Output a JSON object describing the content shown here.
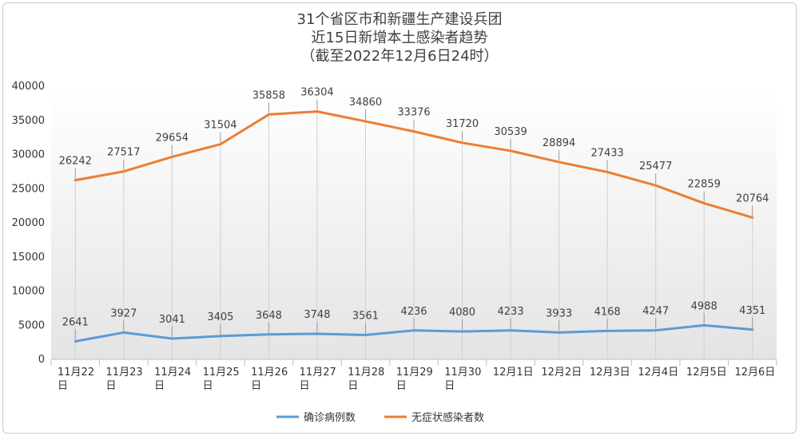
{
  "chart_data": {
    "type": "line",
    "title": [
      "31个省区市和新疆生产建设兵团",
      "近15日新增本土感染者趋势",
      "（截至2022年12月6日24时）"
    ],
    "categories": [
      [
        "11月22",
        "日"
      ],
      [
        "11月23",
        "日"
      ],
      [
        "11月24",
        "日"
      ],
      [
        "11月25",
        "日"
      ],
      [
        "11月26",
        "日"
      ],
      [
        "11月27",
        "日"
      ],
      [
        "11月28",
        "日"
      ],
      [
        "11月29",
        "日"
      ],
      [
        "11月30",
        "日"
      ],
      [
        "12月1日"
      ],
      [
        "12月2日"
      ],
      [
        "12月3日"
      ],
      [
        "12月4日"
      ],
      [
        "12月5日"
      ],
      [
        "12月6日"
      ]
    ],
    "series": [
      {
        "name": "确诊病例数",
        "color": "#5b9bd5",
        "values": [
          2641,
          3927,
          3041,
          3405,
          3648,
          3748,
          3561,
          4236,
          4080,
          4233,
          3933,
          4168,
          4247,
          4988,
          4351
        ],
        "labels": [
          "2641",
          "3927",
          "3041",
          "3405",
          "3648",
          "3748",
          "3561",
          "4236",
          "4080",
          "4233",
          "3933",
          "4168",
          "4247",
          "4988",
          "4351"
        ]
      },
      {
        "name": "无症状感染者数",
        "color": "#ed7d31",
        "values": [
          26242,
          27517,
          29654,
          31504,
          35858,
          36304,
          34860,
          33376,
          31720,
          30539,
          28894,
          27433,
          25477,
          22859,
          20764
        ],
        "labels": [
          "26242",
          "27517",
          "29654",
          "31504",
          "35858",
          "36304",
          "34860",
          "33376",
          "31720",
          "30539",
          "28894",
          "27433",
          "25477",
          "22859",
          "20764"
        ]
      }
    ],
    "ylim": [
      0,
      40000
    ],
    "yticks": [
      "0",
      "5000",
      "10000",
      "15000",
      "20000",
      "25000",
      "30000",
      "35000",
      "40000"
    ],
    "legend_position": "bottom",
    "grid": true
  }
}
